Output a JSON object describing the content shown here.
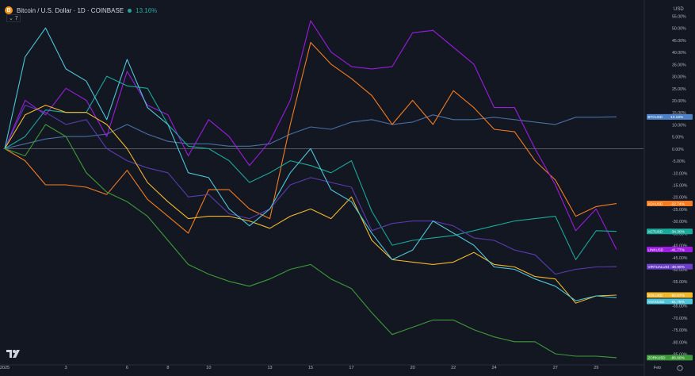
{
  "header": {
    "symbol_icon": "bitcoin-icon",
    "symbol_icon_glyph": "B",
    "title": "Bitcoin / U.S. Dollar · 1D · COINBASE",
    "change": "13.16%",
    "collapse_label": "⌄ 7"
  },
  "footer": {
    "logo": "tradingview-logo",
    "settings_icon": "gear-icon"
  },
  "chart_data": {
    "type": "line",
    "y_axis": {
      "position": "right",
      "ylim": [
        -90,
        55
      ],
      "tick_values": [
        55,
        50,
        45,
        40,
        35,
        30,
        25,
        20,
        15,
        10,
        5,
        0,
        -5,
        -10,
        -15,
        -20,
        -25,
        -30,
        -35,
        -40,
        -45,
        -50,
        -55,
        -60,
        -65,
        -70,
        -75,
        -80,
        -85
      ],
      "tick_labels": [
        "55.00%",
        "50.00%",
        "45.00%",
        "40.00%",
        "35.00%",
        "30.00%",
        "25.00%",
        "20.00%",
        "15.00%",
        "10.00%",
        "5.00%",
        "0.00%",
        "-5.00%",
        "-10.00%",
        "-15.00%",
        "-20.00%",
        "-25.00%",
        "-30.00%",
        "-35.00%",
        "-40.00%",
        "-45.00%",
        "-50.00%",
        "-55.00%",
        "-60.00%",
        "-65.00%",
        "-70.00%",
        "-75.00%",
        "-80.00%",
        "-85.00%"
      ],
      "extra_label": "USD"
    },
    "x_axis": {
      "tick_labels": [
        "2025",
        "3",
        "6",
        "8",
        "10",
        "13",
        "15",
        "17",
        "20",
        "22",
        "24",
        "27",
        "29",
        "Feb"
      ],
      "tick_positions": [
        0,
        3,
        6,
        8,
        10,
        13,
        15,
        17,
        20,
        22,
        24,
        27,
        29,
        32
      ]
    },
    "zero_line": true,
    "series": [
      {
        "name": "BTCUSD",
        "label": "13.16%",
        "color": "#4a6fa5",
        "label_color": "#4f81c7",
        "x": [
          0,
          1,
          2,
          3,
          4,
          5,
          6,
          7,
          8,
          9,
          10,
          11,
          12,
          13,
          14,
          15,
          16,
          17,
          18,
          19,
          20,
          21,
          22,
          23,
          24,
          25,
          26,
          27,
          28,
          29,
          30
        ],
        "y": [
          0,
          2,
          4,
          5,
          5,
          6,
          10,
          6,
          3,
          2,
          2,
          1,
          1,
          2,
          6,
          9,
          8,
          11,
          12,
          10,
          11,
          14,
          12,
          12,
          13,
          12,
          11,
          10,
          13,
          13,
          13.16
        ]
      },
      {
        "name": "ADAUSD",
        "label": "-22.74%",
        "color": "#f57c20",
        "label_color": "#f57c20",
        "x": [
          0,
          1,
          2,
          3,
          4,
          5,
          6,
          7,
          8,
          9,
          10,
          11,
          12,
          13,
          14,
          15,
          16,
          17,
          18,
          19,
          20,
          21,
          22,
          23,
          24,
          25,
          26,
          27,
          28,
          29,
          30
        ],
        "y": [
          0,
          -5,
          -15,
          -15,
          -16,
          -19,
          -9,
          -21,
          -28,
          -35,
          -17,
          -17,
          -25,
          -29,
          10,
          44,
          35,
          29,
          22,
          10,
          20,
          10,
          24,
          17,
          8,
          7,
          -5,
          -13,
          -28,
          -24,
          -22.74
        ]
      },
      {
        "name": "LINKUSD",
        "label": "-41.77%",
        "color": "#9c1ce0",
        "label_color": "#9c1ce0",
        "x": [
          0,
          1,
          2,
          3,
          4,
          5,
          6,
          7,
          8,
          9,
          10,
          11,
          12,
          13,
          14,
          15,
          16,
          17,
          18,
          19,
          20,
          21,
          22,
          23,
          24,
          25,
          26,
          27,
          28,
          29,
          30
        ],
        "y": [
          0,
          20,
          14,
          25,
          20,
          5,
          32,
          18,
          14,
          -3,
          12,
          5,
          -7,
          3,
          20,
          53,
          40,
          34,
          33,
          34,
          48,
          49,
          42,
          35,
          17,
          17,
          0,
          -15,
          -34,
          -25,
          -41.77
        ]
      },
      {
        "name": "ACTUSD",
        "label": "-34.30%",
        "color": "#1aa89a",
        "label_color": "#1aa89a",
        "x": [
          0,
          1,
          2,
          3,
          4,
          5,
          6,
          7,
          8,
          9,
          10,
          11,
          12,
          13,
          14,
          15,
          16,
          17,
          18,
          19,
          20,
          21,
          22,
          23,
          24,
          25,
          26,
          27,
          28,
          29,
          30
        ],
        "y": [
          0,
          5,
          16,
          15,
          15,
          30,
          26,
          25,
          10,
          1,
          0,
          -5,
          -14,
          -10,
          -5,
          -7,
          -10,
          -5,
          -26,
          -40,
          -38,
          -37,
          -36,
          -34,
          -32,
          -30,
          -29,
          -28,
          -46,
          -34,
          -34.3
        ]
      },
      {
        "name": "VIRTUALUSD",
        "label": "-48.90%",
        "color": "#5c3bb0",
        "label_color": "#6b3fc9",
        "x": [
          0,
          1,
          2,
          3,
          4,
          5,
          6,
          7,
          8,
          9,
          10,
          11,
          12,
          13,
          14,
          15,
          16,
          17,
          18,
          19,
          20,
          21,
          22,
          23,
          24,
          25,
          26,
          27,
          28,
          29,
          30
        ],
        "y": [
          0,
          18,
          15,
          10,
          12,
          0,
          -5,
          -8,
          -10,
          -20,
          -19,
          -27,
          -29,
          -25,
          -15,
          -12,
          -14,
          -16,
          -34,
          -31,
          -30,
          -30,
          -32,
          -37,
          -38,
          -42,
          -44,
          -52,
          -50,
          -49,
          -48.9
        ]
      },
      {
        "name": "SOLUSD",
        "label": "-60.67%",
        "color": "#f2b82c",
        "label_color": "#f2b82c",
        "x": [
          0,
          1,
          2,
          3,
          4,
          5,
          6,
          7,
          8,
          9,
          10,
          11,
          12,
          13,
          14,
          15,
          16,
          17,
          18,
          19,
          20,
          21,
          22,
          23,
          24,
          25,
          26,
          27,
          28,
          29,
          30
        ],
        "y": [
          0,
          14,
          18,
          15,
          15,
          10,
          0,
          -14,
          -22,
          -29,
          -28,
          -28,
          -30,
          -33,
          -28,
          -25,
          -29,
          -20,
          -38,
          -46,
          -47,
          -48,
          -47,
          -43,
          -48,
          -49,
          -53,
          -54,
          -64,
          -61,
          -60.67
        ]
      },
      {
        "name": "AVAXUSD",
        "label": "-61.75%",
        "color": "#4ec5d8",
        "label_color": "#4ec5d8",
        "x": [
          0,
          1,
          2,
          3,
          4,
          5,
          6,
          7,
          8,
          9,
          10,
          11,
          12,
          13,
          14,
          15,
          16,
          17,
          18,
          19,
          20,
          21,
          22,
          23,
          24,
          25,
          26,
          27,
          28,
          29,
          30
        ],
        "y": [
          0,
          38,
          50,
          33,
          28,
          12,
          37,
          17,
          10,
          -10,
          -12,
          -25,
          -32,
          -25,
          -10,
          0,
          -17,
          -22,
          -35,
          -46,
          -42,
          -30,
          -35,
          -40,
          -49,
          -50,
          -54,
          -57,
          -63,
          -61,
          -61.75
        ]
      },
      {
        "name": "ZORKUSD",
        "label": "-86.60%",
        "color": "#3e9a3a",
        "label_color": "#3e9a3a",
        "x": [
          0,
          1,
          2,
          3,
          4,
          5,
          6,
          7,
          8,
          9,
          10,
          11,
          12,
          13,
          14,
          15,
          16,
          17,
          18,
          19,
          20,
          21,
          22,
          23,
          24,
          25,
          26,
          27,
          28,
          29,
          30
        ],
        "y": [
          0,
          -3,
          10,
          5,
          -10,
          -18,
          -22,
          -28,
          -38,
          -48,
          -52,
          -55,
          -57,
          -54,
          -50,
          -48,
          -54,
          -58,
          -68,
          -77,
          -74,
          -71,
          -71,
          -75,
          -78,
          -80,
          -80,
          -85,
          -86,
          -86,
          -86.6
        ]
      }
    ]
  }
}
